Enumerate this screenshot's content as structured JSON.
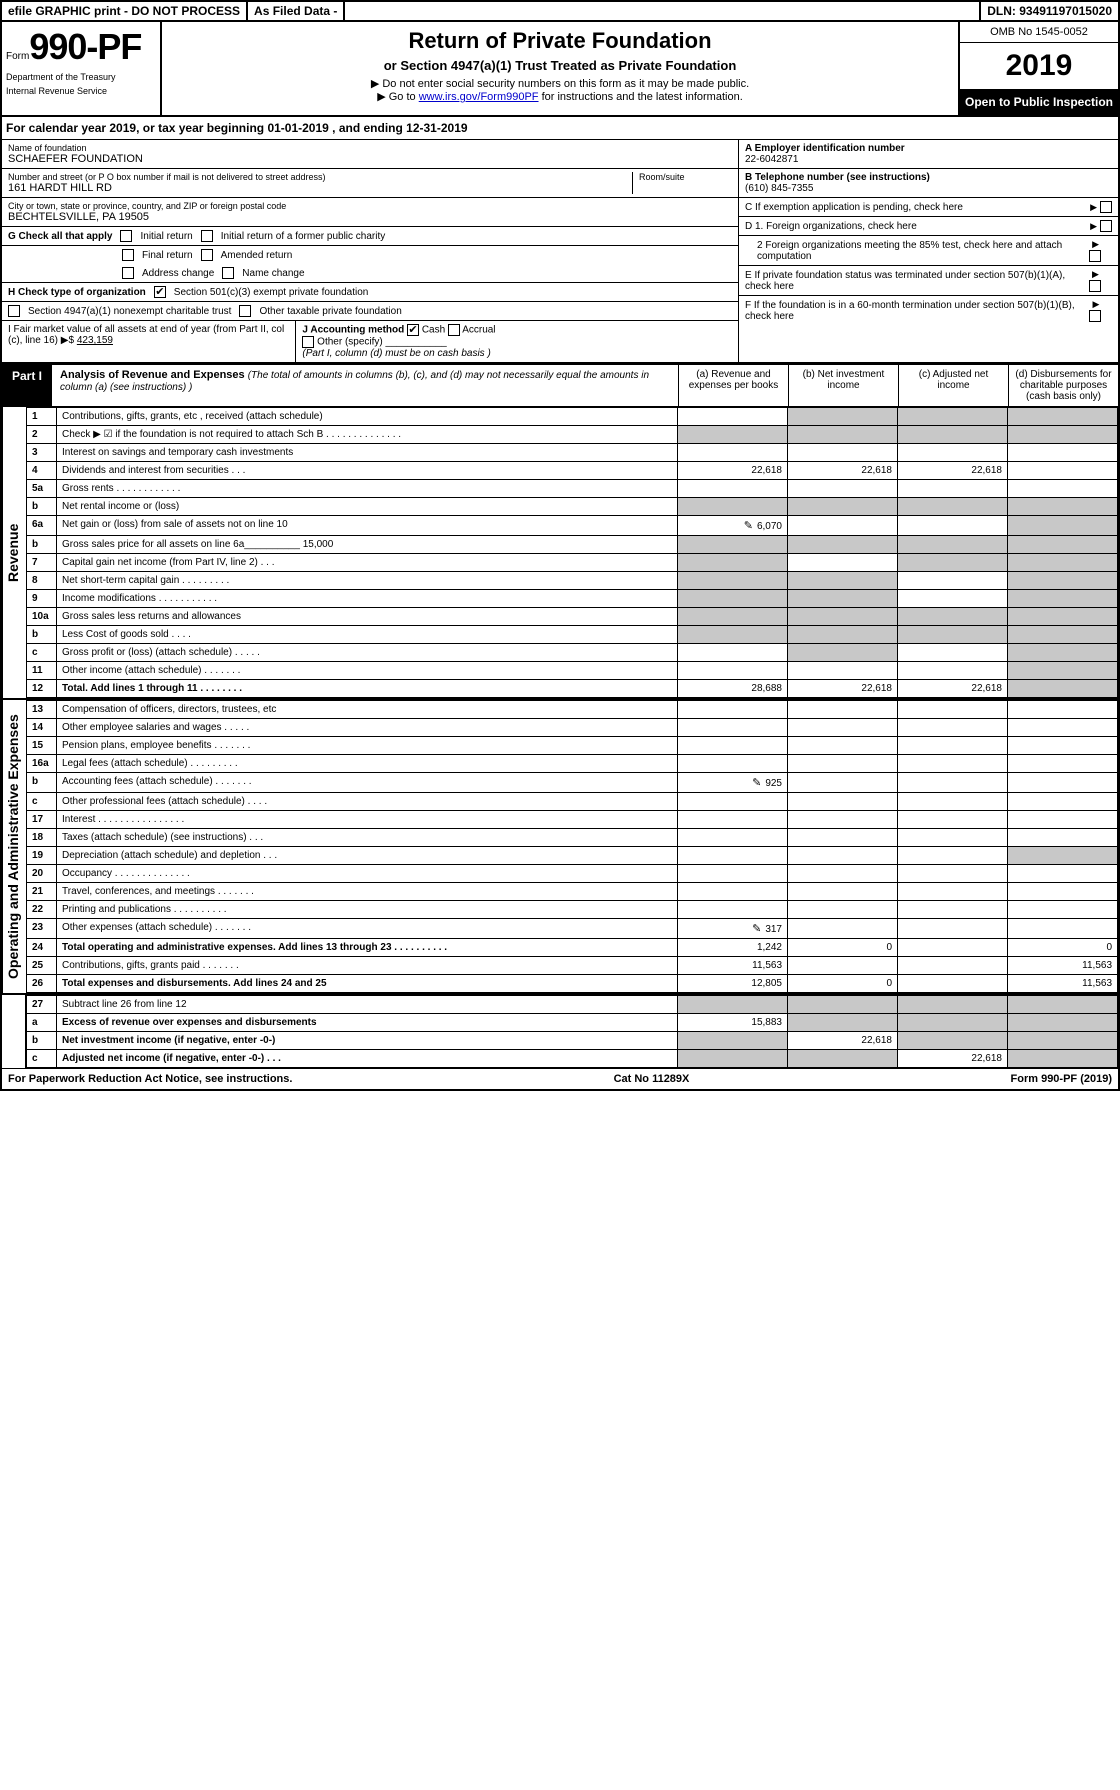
{
  "top_bar": {
    "efile": "efile GRAPHIC print - DO NOT PROCESS",
    "asfiled": "As Filed Data -",
    "dln": "DLN: 93491197015020"
  },
  "header": {
    "form_prefix": "Form",
    "form_number": "990-PF",
    "dept1": "Department of the Treasury",
    "dept2": "Internal Revenue Service",
    "title": "Return of Private Foundation",
    "subtitle": "or Section 4947(a)(1) Trust Treated as Private Foundation",
    "inst1": "▶ Do not enter social security numbers on this form as it may be made public.",
    "inst2_pre": "▶ Go to ",
    "inst2_link": "www.irs.gov/Form990PF",
    "inst2_post": " for instructions and the latest information.",
    "omb": "OMB No 1545-0052",
    "year": "2019",
    "open": "Open to Public Inspection"
  },
  "cal_year": "For calendar year 2019, or tax year beginning 01-01-2019                , and ending 12-31-2019",
  "info": {
    "name_label": "Name of foundation",
    "name": "SCHAEFER FOUNDATION",
    "addr_label": "Number and street (or P O  box number if mail is not delivered to street address)",
    "addr": "161 HARDT HILL RD",
    "room_label": "Room/suite",
    "city_label": "City or town, state or province, country, and ZIP or foreign postal code",
    "city": "BECHTELSVILLE, PA  19505",
    "a_label": "A Employer identification number",
    "a_val": "22-6042871",
    "b_label": "B Telephone number (see instructions)",
    "b_val": "(610) 845-7355",
    "c_label": "C If exemption application is pending, check here",
    "d1": "D 1. Foreign organizations, check here",
    "d2": "2 Foreign organizations meeting the 85% test, check here and attach computation",
    "e_label": "E If private foundation status was terminated under section 507(b)(1)(A), check here",
    "f_label": "F If the foundation is in a 60-month termination under section 507(b)(1)(B), check here"
  },
  "g": {
    "label": "G Check all that apply",
    "opts": [
      "Initial return",
      "Initial return of a former public charity",
      "Final return",
      "Amended return",
      "Address change",
      "Name change"
    ]
  },
  "h": {
    "label": "H Check type of organization",
    "opt1": "Section 501(c)(3) exempt private foundation",
    "opt2": "Section 4947(a)(1) nonexempt charitable trust",
    "opt3": "Other taxable private foundation"
  },
  "i": {
    "label": "I Fair market value of all assets at end of year (from Part II, col  (c), line 16) ▶$",
    "val": "423,159"
  },
  "j": {
    "label": "J Accounting method",
    "cash": "Cash",
    "accrual": "Accrual",
    "other": "Other (specify)",
    "note": "(Part I, column (d) must be on cash basis )"
  },
  "part1": {
    "label": "Part I",
    "title": "Analysis of Revenue and Expenses",
    "note": "(The total of amounts in columns (b), (c), and (d) may not necessarily equal the amounts in column (a) (see instructions) )",
    "col_a": "(a) Revenue and expenses per books",
    "col_b": "(b) Net investment income",
    "col_c": "(c) Adjusted net income",
    "col_d": "(d) Disbursements for charitable purposes (cash basis only)"
  },
  "side_labels": {
    "revenue": "Revenue",
    "expenses": "Operating and Administrative Expenses"
  },
  "rows": {
    "r1": {
      "n": "1",
      "d": "Contributions, gifts, grants, etc , received (attach schedule)"
    },
    "r2": {
      "n": "2",
      "d": "Check ▶ ☑ if the foundation is not required to attach Sch B  .  .  .  .  .  .  .  .  .  .  .  .  .  ."
    },
    "r3": {
      "n": "3",
      "d": "Interest on savings and temporary cash investments"
    },
    "r4": {
      "n": "4",
      "d": "Dividends and interest from securities   .  .  .",
      "a": "22,618",
      "b": "22,618",
      "c": "22,618"
    },
    "r5a": {
      "n": "5a",
      "d": "Gross rents   .  .  .  .  .  .  .  .  .  .  .  ."
    },
    "r5b": {
      "n": "b",
      "d": "Net rental income or (loss)"
    },
    "r6a": {
      "n": "6a",
      "d": "Net gain or (loss) from sale of assets not on line 10",
      "a": "6,070",
      "icon": true
    },
    "r6b": {
      "n": "b",
      "d": "Gross sales price for all assets on line 6a__________ 15,000"
    },
    "r7": {
      "n": "7",
      "d": "Capital gain net income (from Part IV, line 2)  .  .  ."
    },
    "r8": {
      "n": "8",
      "d": "Net short-term capital gain  .  .  .  .  .  .  .  .  ."
    },
    "r9": {
      "n": "9",
      "d": "Income modifications  .  .  .  .  .  .  .  .  .  .  ."
    },
    "r10a": {
      "n": "10a",
      "d": "Gross sales less returns and allowances"
    },
    "r10b": {
      "n": "b",
      "d": "Less  Cost of goods sold   .  .  .  ."
    },
    "r10c": {
      "n": "c",
      "d": "Gross profit or (loss) (attach schedule)   .  .  .  .  ."
    },
    "r11": {
      "n": "11",
      "d": "Other income (attach schedule)   .  .  .  .  .  .  ."
    },
    "r12": {
      "n": "12",
      "d": "Total. Add lines 1 through 11  .  .  .  .  .  .  .  .",
      "a": "28,688",
      "b": "22,618",
      "c": "22,618",
      "bold": true
    },
    "r13": {
      "n": "13",
      "d": "Compensation of officers, directors, trustees, etc"
    },
    "r14": {
      "n": "14",
      "d": "Other employee salaries and wages   .  .  .  .  ."
    },
    "r15": {
      "n": "15",
      "d": "Pension plans, employee benefits  .  .  .  .  .  .  ."
    },
    "r16a": {
      "n": "16a",
      "d": "Legal fees (attach schedule)  .  .  .  .  .  .  .  .  ."
    },
    "r16b": {
      "n": "b",
      "d": "Accounting fees (attach schedule)  .  .  .  .  .  .  .",
      "a": "925",
      "icon": true
    },
    "r16c": {
      "n": "c",
      "d": "Other professional fees (attach schedule)   .  .  .  ."
    },
    "r17": {
      "n": "17",
      "d": "Interest  .  .  .  .  .  .  .  .  .  .  .  .  .  .  .  ."
    },
    "r18": {
      "n": "18",
      "d": "Taxes (attach schedule) (see instructions)    .  .  ."
    },
    "r19": {
      "n": "19",
      "d": "Depreciation (attach schedule) and depletion   .  .  ."
    },
    "r20": {
      "n": "20",
      "d": "Occupancy   .  .  .  .  .  .  .  .  .  .  .  .  .  ."
    },
    "r21": {
      "n": "21",
      "d": "Travel, conferences, and meetings .  .  .  .  .  .  ."
    },
    "r22": {
      "n": "22",
      "d": "Printing and publications .  .  .  .  .  .  .  .  .  ."
    },
    "r23": {
      "n": "23",
      "d": "Other expenses (attach schedule) .  .  .  .  .  .  .",
      "a": "317",
      "icon": true
    },
    "r24": {
      "n": "24",
      "d": "Total operating and administrative expenses. Add lines 13 through 23  .  .  .  .  .  .  .  .  .  .",
      "a": "1,242",
      "b": "0",
      "dd": "0",
      "bold": true
    },
    "r25": {
      "n": "25",
      "d": "Contributions, gifts, grants paid   .  .  .  .  .  .  .",
      "a": "11,563",
      "dd": "11,563"
    },
    "r26": {
      "n": "26",
      "d": "Total expenses and disbursements. Add lines 24 and 25",
      "a": "12,805",
      "b": "0",
      "dd": "11,563",
      "bold": true
    },
    "r27": {
      "n": "27",
      "d": "Subtract line 26 from line 12"
    },
    "r27a": {
      "n": "a",
      "d": "Excess of revenue over expenses and disbursements",
      "a": "15,883",
      "bold": true
    },
    "r27b": {
      "n": "b",
      "d": "Net investment income (if negative, enter -0-)",
      "b": "22,618",
      "bold": true
    },
    "r27c": {
      "n": "c",
      "d": "Adjusted net income (if negative, enter -0-)  .  .  .",
      "c": "22,618",
      "bold": true
    }
  },
  "footer": {
    "left": "For Paperwork Reduction Act Notice, see instructions.",
    "mid": "Cat  No  11289X",
    "right": "Form 990-PF (2019)"
  }
}
